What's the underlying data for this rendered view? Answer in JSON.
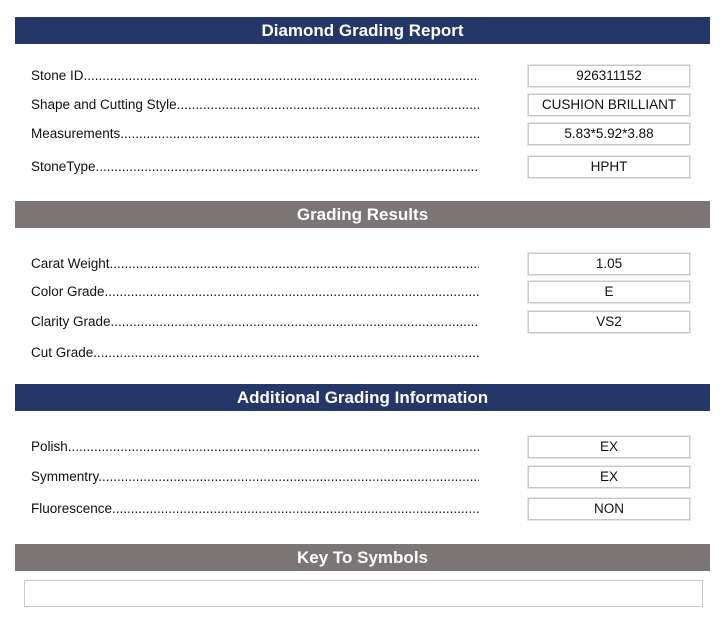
{
  "report": {
    "title": "Diamond Grading Report",
    "rows": [
      {
        "label": "Stone ID",
        "value": "926311152"
      },
      {
        "label": "Shape and Cutting Style",
        "value": "CUSHION BRILLIANT"
      },
      {
        "label": "Measurements",
        "value": "5.83*5.92*3.88"
      },
      {
        "label": "StoneType",
        "value": "HPHT"
      }
    ]
  },
  "grading": {
    "title": "Grading Results",
    "rows": [
      {
        "label": "Carat Weight",
        "value": "1.05"
      },
      {
        "label": "Color Grade",
        "value": "E"
      },
      {
        "label": "Clarity Grade",
        "value": "VS2"
      },
      {
        "label": "Cut Grade",
        "value": null
      }
    ]
  },
  "additional": {
    "title": "Additional Grading Information",
    "rows": [
      {
        "label": "Polish",
        "value": "EX"
      },
      {
        "label": "Symmentry",
        "value": "EX"
      },
      {
        "label": "Fluorescence",
        "value": "NON"
      }
    ]
  },
  "key": {
    "title": "Key To Symbols",
    "content": ""
  },
  "colors": {
    "header_blue": "#253768",
    "header_gray": "#7b7675"
  }
}
